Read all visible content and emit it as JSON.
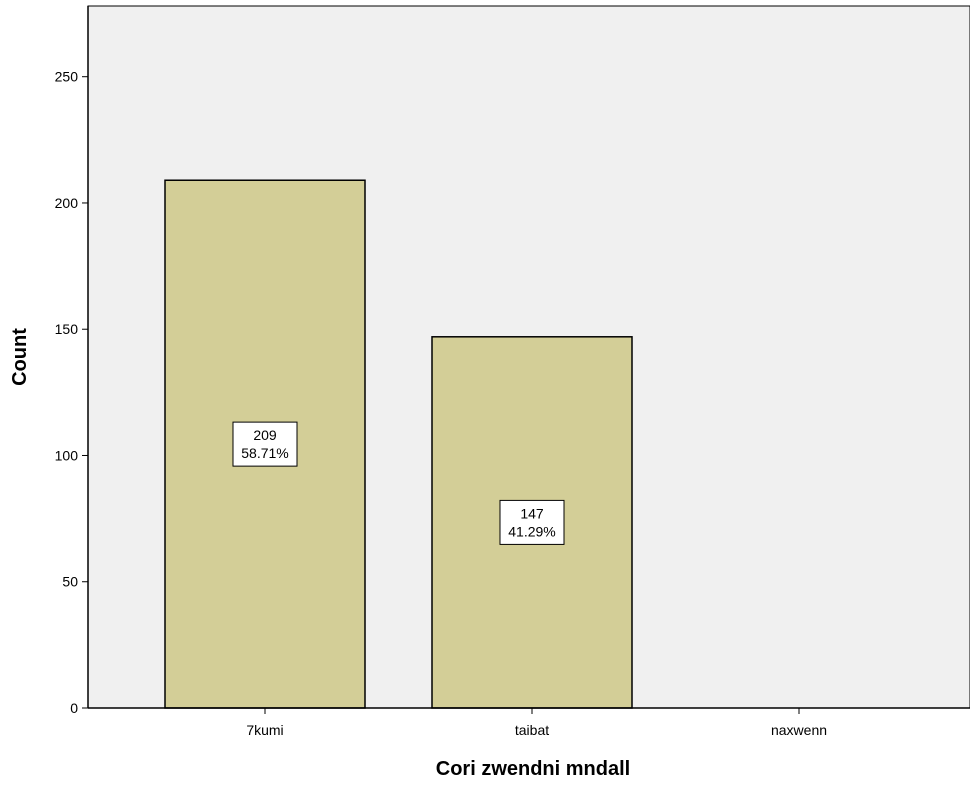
{
  "chart_data": {
    "type": "bar",
    "categories": [
      "7kumi",
      "taibat",
      "naxwenn"
    ],
    "values": [
      209,
      147,
      0
    ],
    "value_labels": [
      [
        "209",
        "58.71%"
      ],
      [
        "147",
        "41.29%"
      ],
      null
    ],
    "xlabel": "Cori zwendni mndall",
    "ylabel": "Count",
    "ylim": [
      0,
      278
    ],
    "yticks": [
      0,
      50,
      100,
      150,
      200,
      250
    ],
    "grid": false,
    "legend": "none",
    "colors": {
      "plot_background": "#f0f0f0",
      "bar_fill": "#d3ce97",
      "bar_stroke": "#000000",
      "label_box": "#ffffff"
    }
  }
}
